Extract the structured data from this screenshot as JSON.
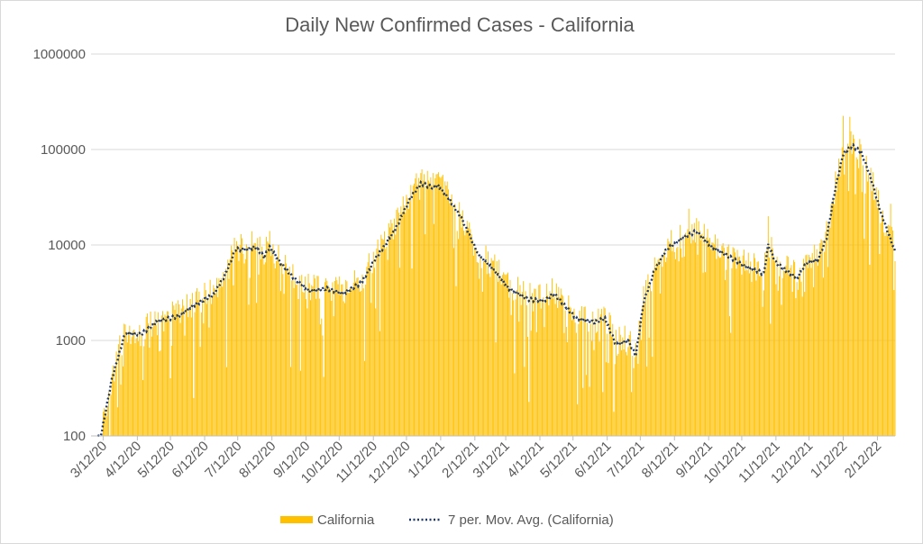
{
  "chart_data": {
    "type": "bar",
    "title": "Daily New Confirmed Cases - California",
    "xlabel": "",
    "ylabel": "",
    "y_scale": "log",
    "ylim": [
      100,
      1000000
    ],
    "y_ticks": [
      "100",
      "1000",
      "10000",
      "100000",
      "1000000"
    ],
    "x_ticks": [
      "3/12/20",
      "4/12/20",
      "5/12/20",
      "6/12/20",
      "7/12/20",
      "8/12/20",
      "9/12/20",
      "10/12/20",
      "11/12/20",
      "12/12/20",
      "1/12/21",
      "2/12/21",
      "3/12/21",
      "4/12/21",
      "5/12/21",
      "6/12/21",
      "7/12/21",
      "8/12/21",
      "9/12/21",
      "10/12/21",
      "11/12/21",
      "12/12/21",
      "1/12/22",
      "2/12/22"
    ],
    "x_range": [
      "3/1/20",
      "2/28/22"
    ],
    "legend_position": "bottom",
    "series": [
      {
        "name": "California",
        "kind": "bar",
        "color": "#FFC000"
      },
      {
        "name": "7 per. Mov. Avg. (California)",
        "kind": "dotted-line",
        "color": "#1F3864"
      }
    ],
    "moving_average_keyframes": [
      [
        "3/1/20",
        90
      ],
      [
        "3/10/20",
        100
      ],
      [
        "3/20/20",
        400
      ],
      [
        "4/1/20",
        1200
      ],
      [
        "4/15/20",
        1150
      ],
      [
        "5/1/20",
        1600
      ],
      [
        "5/20/20",
        1800
      ],
      [
        "6/1/20",
        2300
      ],
      [
        "6/20/20",
        3000
      ],
      [
        "7/1/20",
        5000
      ],
      [
        "7/10/20",
        9000
      ],
      [
        "7/20/20",
        9000
      ],
      [
        "7/28/20",
        9500
      ],
      [
        "8/5/20",
        7500
      ],
      [
        "8/10/20",
        9500
      ],
      [
        "8/20/20",
        6500
      ],
      [
        "9/1/20",
        4500
      ],
      [
        "9/15/20",
        3300
      ],
      [
        "10/1/20",
        3500
      ],
      [
        "10/15/20",
        3100
      ],
      [
        "11/1/20",
        4000
      ],
      [
        "11/15/20",
        7500
      ],
      [
        "12/1/20",
        14000
      ],
      [
        "12/15/20",
        30000
      ],
      [
        "12/25/20",
        44000
      ],
      [
        "1/5/21",
        40000
      ],
      [
        "1/10/21",
        42000
      ],
      [
        "1/20/21",
        30000
      ],
      [
        "2/1/21",
        18000
      ],
      [
        "2/15/21",
        8000
      ],
      [
        "3/1/21",
        5500
      ],
      [
        "3/15/21",
        3500
      ],
      [
        "4/1/21",
        2700
      ],
      [
        "4/15/21",
        2600
      ],
      [
        "4/25/21",
        3100
      ],
      [
        "5/15/21",
        1700
      ],
      [
        "6/1/21",
        1550
      ],
      [
        "6/10/21",
        1700
      ],
      [
        "6/20/21",
        900
      ],
      [
        "7/1/21",
        1000
      ],
      [
        "7/8/21",
        700
      ],
      [
        "7/15/21",
        2500
      ],
      [
        "7/25/21",
        5500
      ],
      [
        "8/5/21",
        9000
      ],
      [
        "8/20/21",
        12000
      ],
      [
        "9/1/21",
        14000
      ],
      [
        "9/15/21",
        9500
      ],
      [
        "10/1/21",
        7500
      ],
      [
        "10/15/21",
        6000
      ],
      [
        "11/1/21",
        5000
      ],
      [
        "11/5/21",
        10000
      ],
      [
        "11/12/21",
        6500
      ],
      [
        "12/1/21",
        4500
      ],
      [
        "12/10/21",
        6500
      ],
      [
        "12/20/21",
        7000
      ],
      [
        "12/28/21",
        12000
      ],
      [
        "1/5/22",
        40000
      ],
      [
        "1/12/22",
        90000
      ],
      [
        "1/20/22",
        110000
      ],
      [
        "1/28/22",
        95000
      ],
      [
        "2/5/22",
        55000
      ],
      [
        "2/15/22",
        22000
      ],
      [
        "2/28/22",
        8500
      ]
    ],
    "daily_bar_peaks": [
      [
        "7/15/20",
        13000
      ],
      [
        "8/10/20",
        14000
      ],
      [
        "12/26/20",
        62000
      ],
      [
        "1/8/21",
        55000
      ],
      [
        "8/25/21",
        24000
      ],
      [
        "11/5/21",
        20000
      ],
      [
        "1/12/22",
        225000
      ],
      [
        "1/18/22",
        220000
      ],
      [
        "2/24/22",
        27000
      ]
    ]
  },
  "legend": {
    "series_label": "California",
    "avg_label": "7 per. Mov. Avg. (California)"
  }
}
